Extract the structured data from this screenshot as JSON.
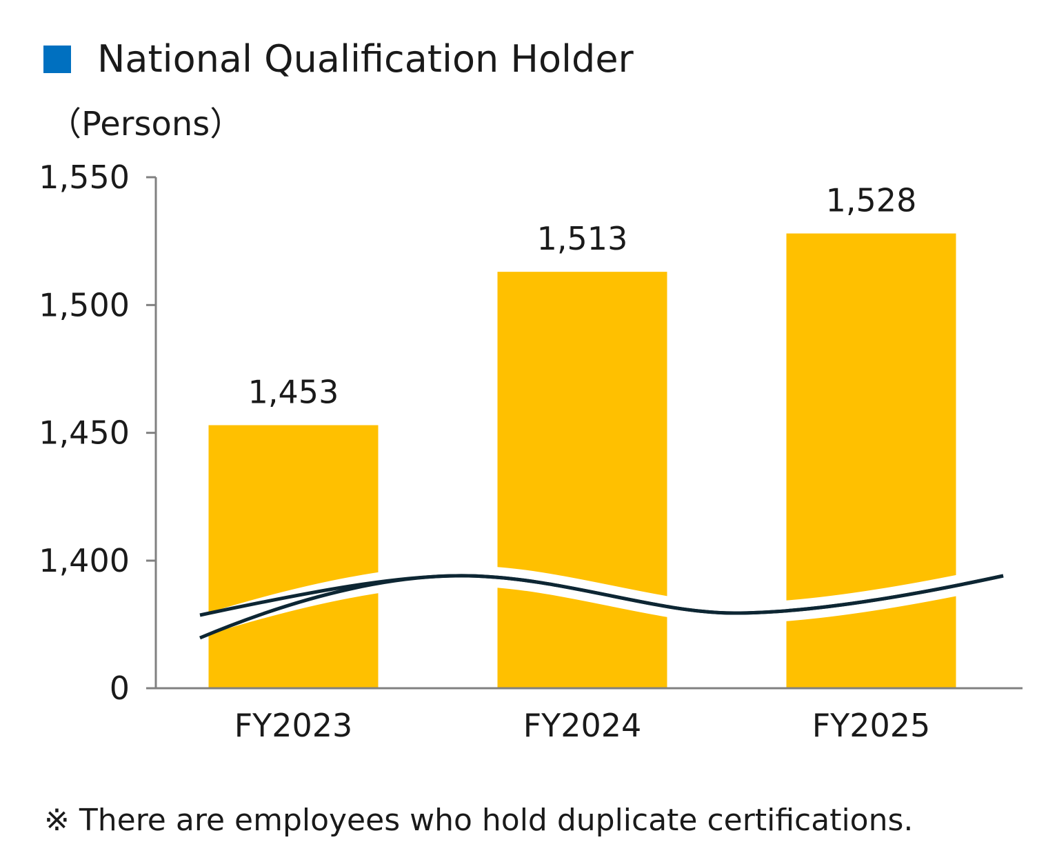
{
  "legend": {
    "label": "National Qualification Holder",
    "swatch_color": "#0070c0"
  },
  "unit_label": "（Persons）",
  "note": "※ There are employees who hold duplicate certifications.",
  "colors": {
    "bar": "#ffc000",
    "axis": "#808080",
    "break_line": "#0d2633"
  },
  "chart_data": {
    "type": "bar",
    "categories": [
      "FY2023",
      "FY2024",
      "FY2025"
    ],
    "values": [
      1453,
      1513,
      1528
    ],
    "data_labels": [
      "1,453",
      "1,513",
      "1,528"
    ],
    "yticks": [
      0,
      1400,
      1450,
      1500,
      1550
    ],
    "ytick_labels": [
      "0",
      "1,400",
      "1,450",
      "1,500",
      "1,550"
    ],
    "ylim": [
      1350,
      1550
    ],
    "axis_break": true,
    "grid": false,
    "ylabel": "（Persons）",
    "xlabel": "",
    "legend_position": "top-left"
  }
}
